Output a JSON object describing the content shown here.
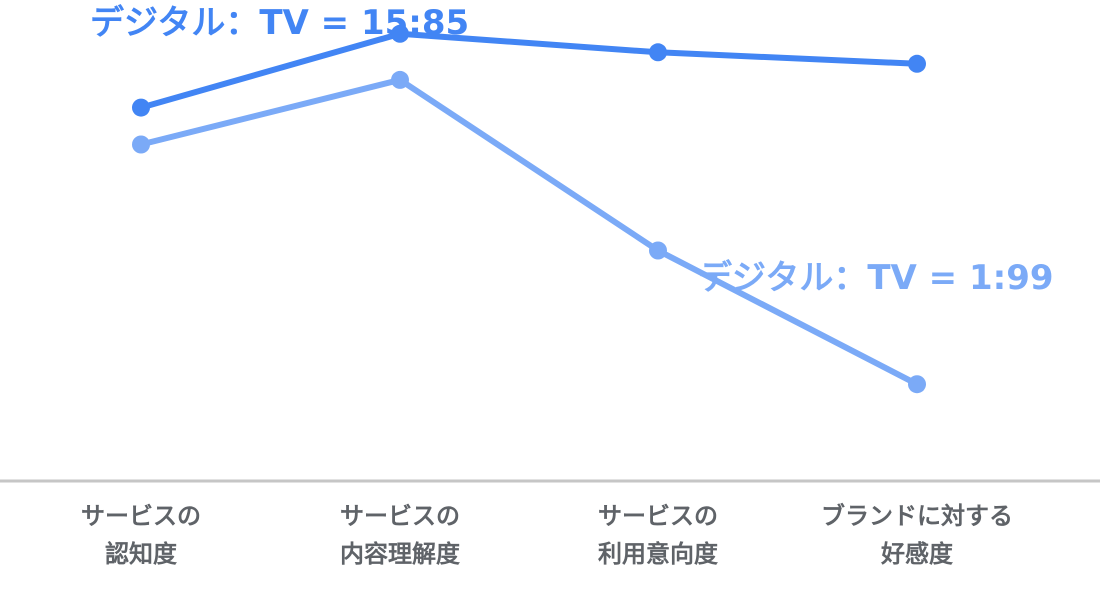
{
  "chart_data": {
    "type": "line",
    "categories": [
      [
        "サービスの",
        "認知度"
      ],
      [
        "サービスの",
        "内容理解度"
      ],
      [
        "サービスの",
        "利用意向度"
      ],
      [
        "ブランドに対する",
        "好感度"
      ]
    ],
    "series": [
      {
        "name": "デジタル：TV = 15:85",
        "color": "#4285f4",
        "values": [
          81,
          97,
          93,
          90.5
        ]
      },
      {
        "name": "デジタル：TV = 1:99",
        "color": "#7baaf7",
        "values": [
          73,
          87,
          50,
          21
        ]
      }
    ],
    "ylim": [
      0,
      100
    ],
    "grid": false,
    "legend": "inline-labels"
  }
}
